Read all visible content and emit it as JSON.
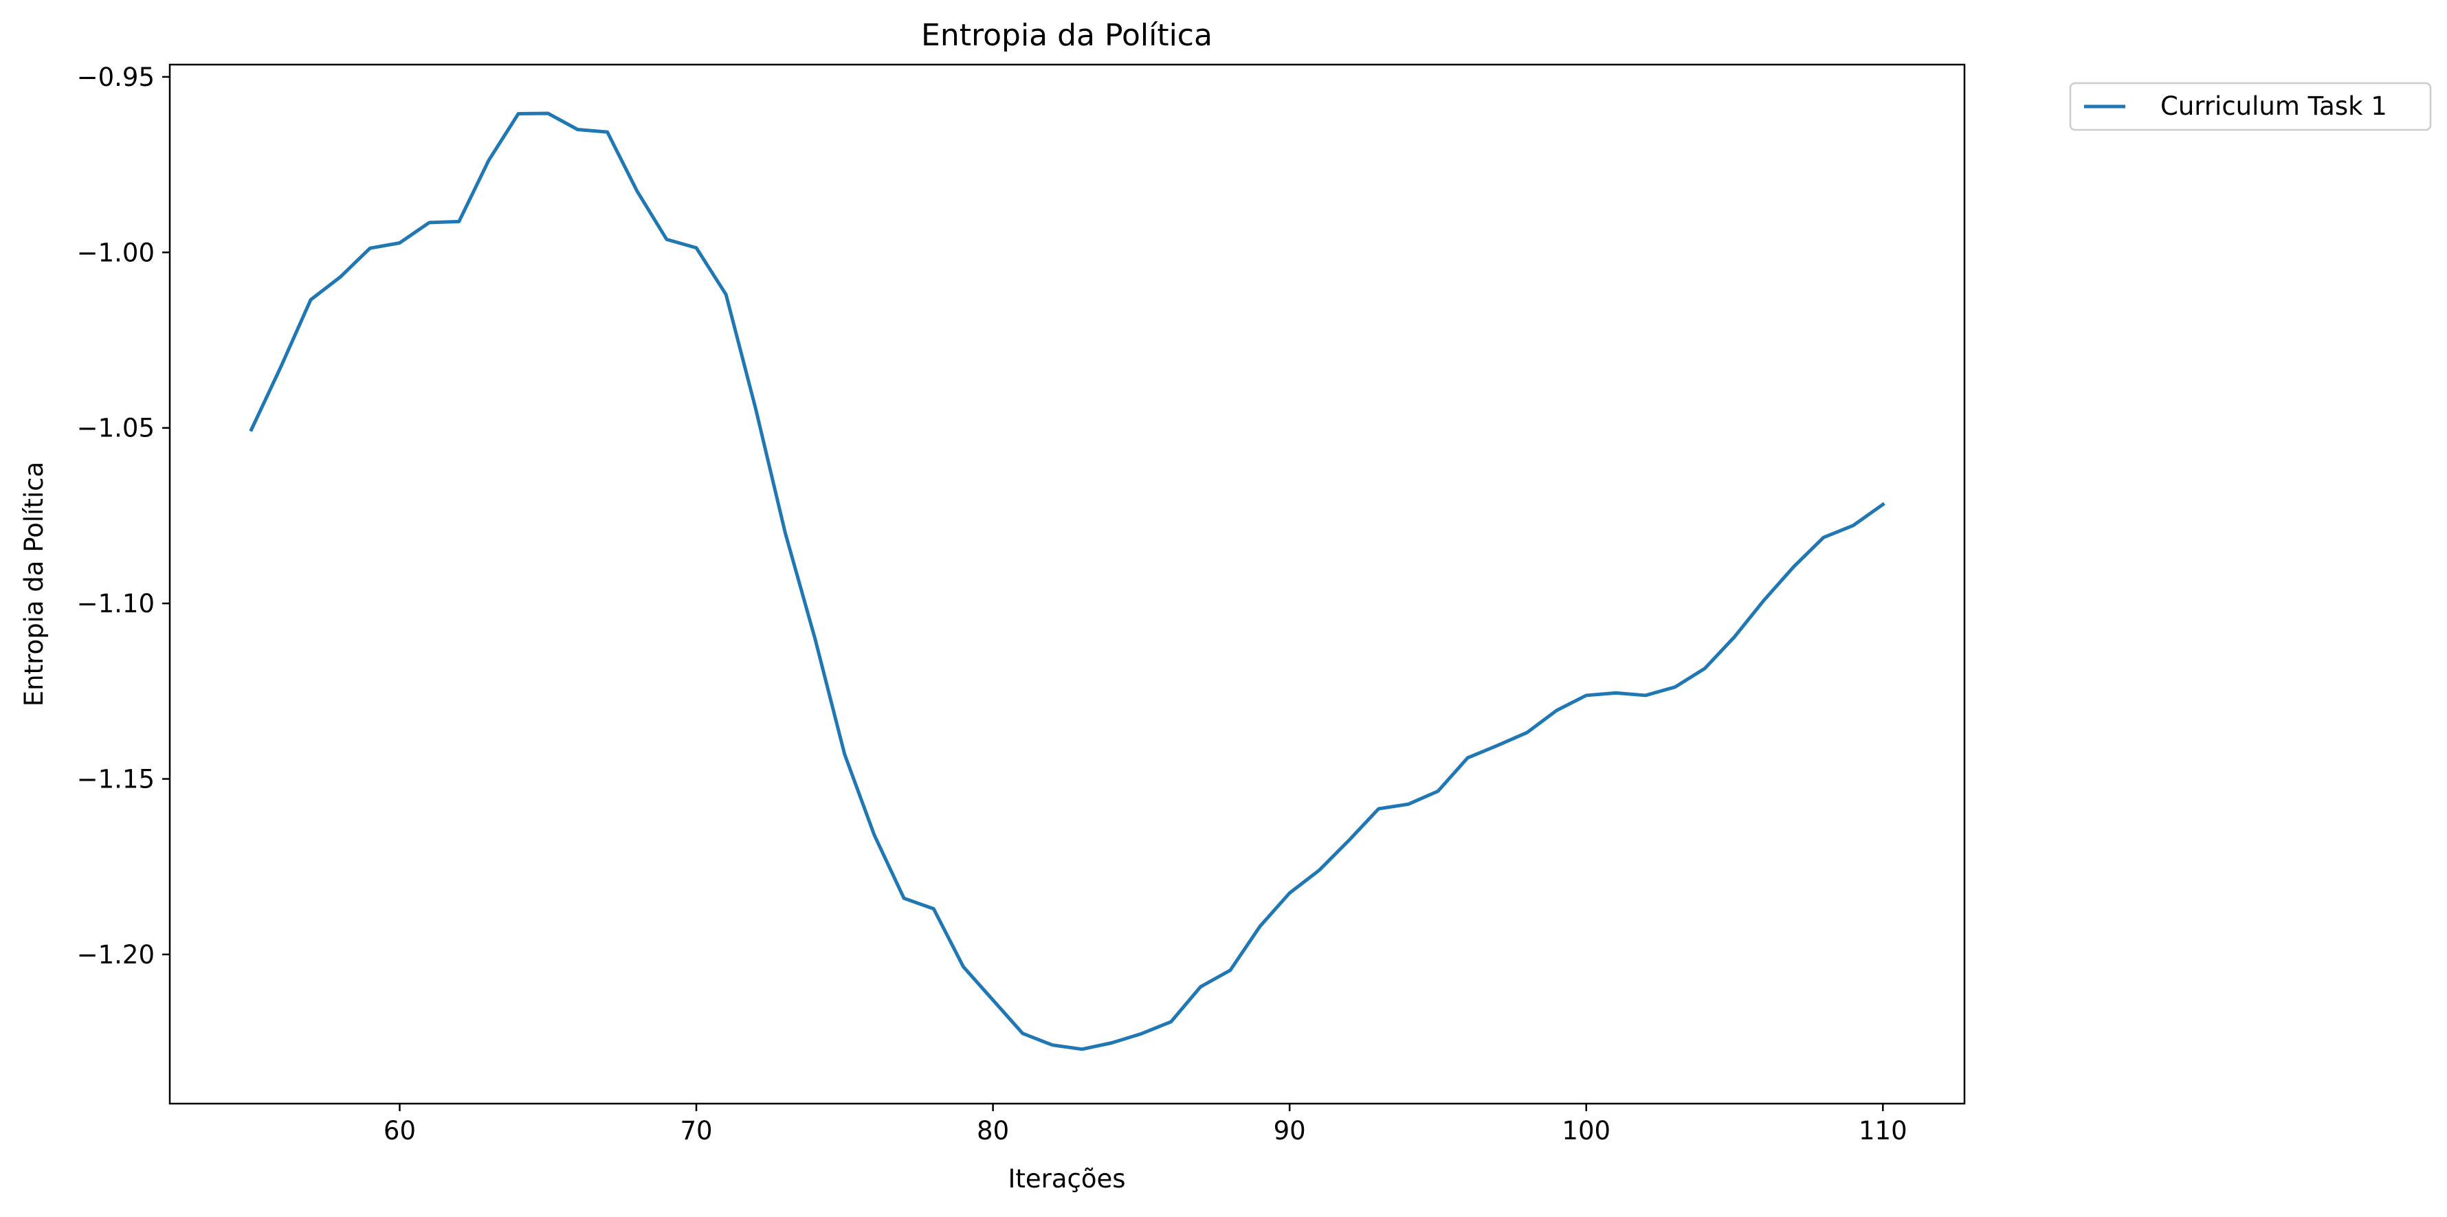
{
  "chart_data": {
    "type": "line",
    "title": "Entropia da Política",
    "xlabel": "Iterações",
    "ylabel": "Entropia da Política",
    "xlim": [
      52.25,
      112.75
    ],
    "ylim": [
      -1.2425,
      -0.9465
    ],
    "xticks": [
      60,
      70,
      80,
      90,
      100,
      110
    ],
    "xtick_labels": [
      "60",
      "70",
      "80",
      "90",
      "100",
      "110"
    ],
    "yticks": [
      -0.95,
      -1.0,
      -1.05,
      -1.1,
      -1.15,
      -1.2
    ],
    "ytick_labels": [
      "−0.95",
      "−1.00",
      "−1.05",
      "−1.10",
      "−1.15",
      "−1.20"
    ],
    "grid": false,
    "legend_position": "outside top-right",
    "x": [
      55,
      56,
      57,
      58,
      59,
      60,
      61,
      62,
      63,
      64,
      65,
      66,
      67,
      68,
      69,
      70,
      71,
      72,
      73,
      74,
      75,
      76,
      77,
      78,
      79,
      80,
      81,
      82,
      83,
      84,
      85,
      86,
      87,
      88,
      89,
      90,
      91,
      92,
      93,
      94,
      95,
      96,
      97,
      98,
      99,
      100,
      101,
      102,
      103,
      104,
      105,
      106,
      107,
      108,
      109,
      110
    ],
    "series": [
      {
        "name": "Curriculum Task 1",
        "color": "#1f77b4",
        "values": [
          -1.0505,
          -1.0325,
          -1.0135,
          -1.007,
          -0.9988,
          -0.9973,
          -0.9915,
          -0.9912,
          -0.9738,
          -0.9605,
          -0.9604,
          -0.965,
          -0.9657,
          -0.9825,
          -0.9963,
          -0.9987,
          -1.012,
          -1.0445,
          -1.08,
          -1.11,
          -1.143,
          -1.166,
          -1.184,
          -1.187,
          -1.2035,
          -1.213,
          -1.2225,
          -1.2258,
          -1.227,
          -1.2252,
          -1.2226,
          -1.2192,
          -1.2092,
          -1.2045,
          -1.192,
          -1.1825,
          -1.176,
          -1.1675,
          -1.1585,
          -1.1572,
          -1.1535,
          -1.144,
          -1.1405,
          -1.1368,
          -1.1305,
          -1.1262,
          -1.1255,
          -1.1262,
          -1.1238,
          -1.1185,
          -1.1095,
          -1.099,
          -1.0895,
          -1.0812,
          -1.0778,
          -1.0718
        ]
      }
    ]
  }
}
